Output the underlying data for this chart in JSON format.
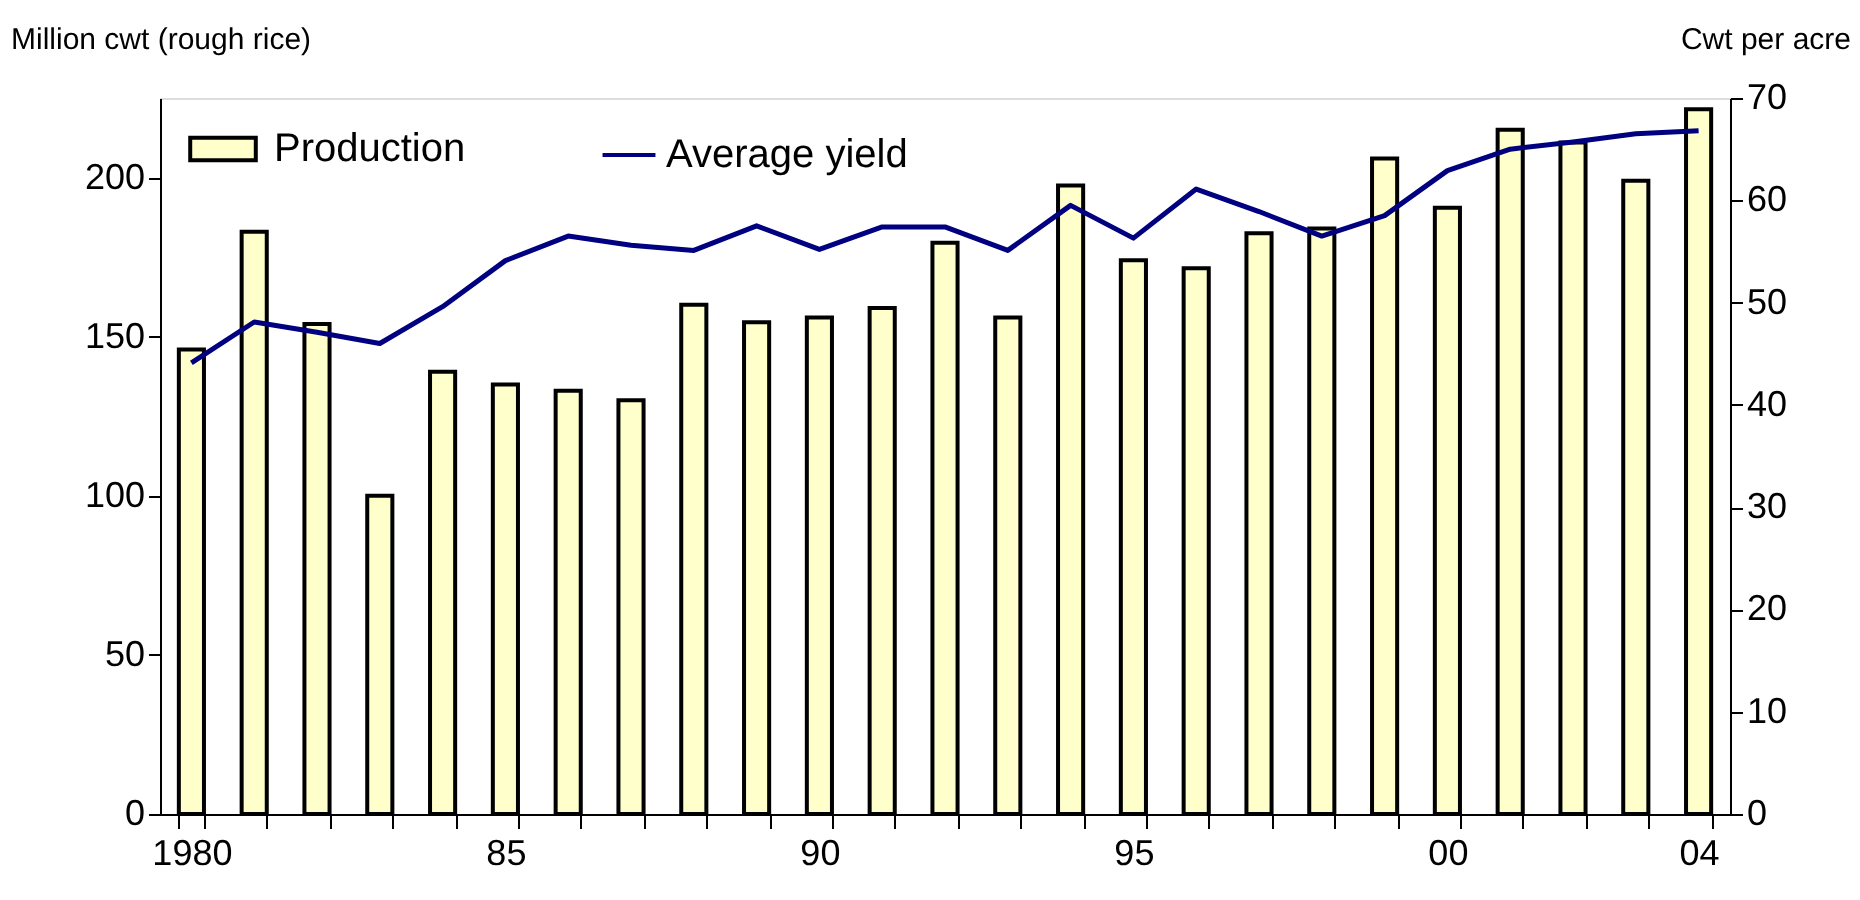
{
  "chart_data": {
    "type": "bar",
    "ylabel": "Million cwt (rough rice)",
    "y2label": "Cwt per acre",
    "categories": [
      "1980",
      null,
      null,
      null,
      null,
      "85",
      null,
      null,
      null,
      null,
      "90",
      null,
      null,
      null,
      null,
      "95",
      null,
      null,
      null,
      null,
      "00",
      null,
      null,
      null,
      "04"
    ],
    "series": [
      {
        "name": "Production",
        "color": "#ffffcc",
        "values": [
          146,
          183,
          154,
          100,
          139,
          135,
          133,
          130,
          160,
          154.5,
          156,
          159,
          179.5,
          156,
          197.5,
          174,
          171.5,
          182.5,
          184,
          206,
          190.5,
          215,
          211,
          199,
          221.5
        ]
      },
      {
        "name": "Average yield",
        "type": "line",
        "axis": "y2",
        "color": "#000080",
        "values": [
          44.1,
          48.1,
          47.1,
          46.0,
          49.6,
          54.1,
          56.5,
          55.6,
          55.1,
          57.5,
          55.2,
          57.4,
          57.4,
          55.1,
          59.5,
          56.3,
          61.1,
          58.9,
          56.5,
          58.5,
          62.9,
          65.0,
          65.7,
          66.5,
          66.8
        ]
      }
    ],
    "ylim": [
      0,
      225
    ],
    "yticks": [
      0,
      50,
      100,
      150,
      200
    ],
    "y2lim": [
      0,
      70
    ],
    "y2ticks": [
      0,
      10,
      20,
      30,
      40,
      50,
      60,
      70
    ],
    "legend": "top left",
    "grid": false,
    "line_style": "solid",
    "marker": "none"
  }
}
